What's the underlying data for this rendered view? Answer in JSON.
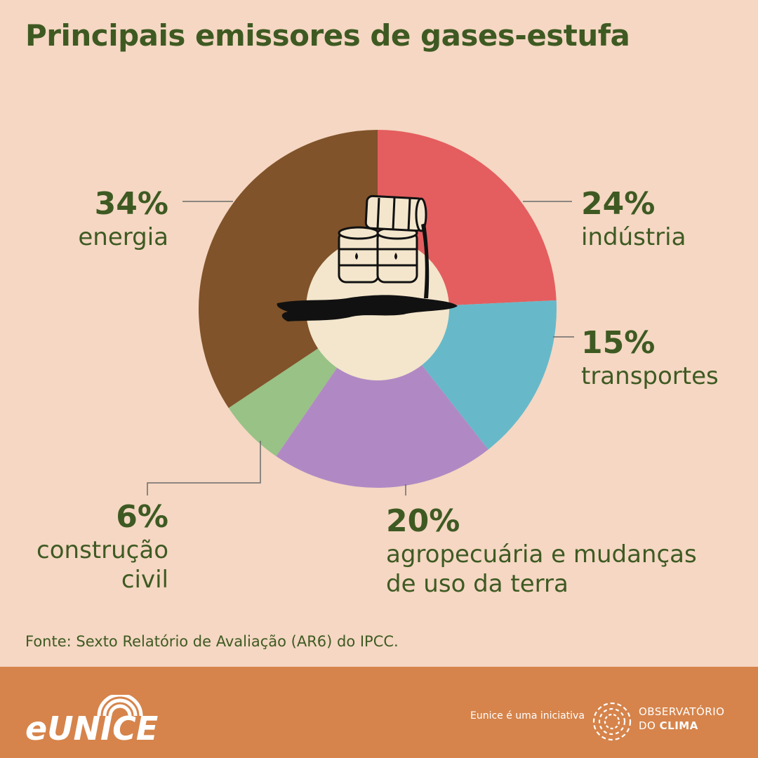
{
  "title": "Principais emissores de gases-estufa",
  "chart_data": {
    "type": "pie",
    "title": "Principais emissores de gases-estufa",
    "slices": [
      {
        "label_pct": "24%",
        "label_name": "indústria",
        "value": 24,
        "color": "#E45E5F"
      },
      {
        "label_pct": "15%",
        "label_name": "transportes",
        "value": 15,
        "color": "#67B9C9"
      },
      {
        "label_pct": "20%",
        "label_name": "agropecuária e mudanças de uso da terra",
        "value": 20,
        "color": "#B089C4"
      },
      {
        "label_pct": "6%",
        "label_name": "construção civil",
        "value": 6,
        "color": "#98C286"
      },
      {
        "label_pct": "34%",
        "label_name": "energia",
        "value": 34,
        "color": "#80532A"
      }
    ],
    "center_color": "#F3E6CC"
  },
  "labels": {
    "industria": {
      "pct": "24%",
      "name": "indústria"
    },
    "transportes": {
      "pct": "15%",
      "name": "transportes"
    },
    "agro": {
      "pct": "20%",
      "name_line1": "agropecuária e mudanças",
      "name_line2": "de uso da terra"
    },
    "construcao": {
      "pct": "6%",
      "name_line1": "construção",
      "name_line2": "civil"
    },
    "energia": {
      "pct": "34%",
      "name": "energia"
    }
  },
  "source": "Fonte: Sexto Relatório de Avaliação (AR6) do IPCC.",
  "footer": {
    "brand": "eUNICE",
    "initiative": "Eunice é uma iniciativa",
    "org_line1": "OBSERVATÓRIO",
    "org_line2_a": "DO ",
    "org_line2_b": "CLIMA",
    "background": "#D6844B"
  }
}
